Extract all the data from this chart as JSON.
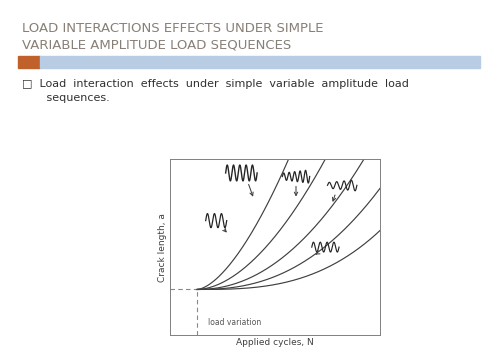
{
  "title_line1": "LOAD INTERACTIONS EFFECTS UNDER SIMPLE",
  "title_line2": "VARIABLE AMPLITUDE LOAD SEQUENCES",
  "title_color": "#888077",
  "title_fontsize": 9.5,
  "bar_orange": "#C0612B",
  "bar_blue": "#B8CCE4",
  "bullet_text_line1": "□  Load  interaction  effects  under  simple  variable  amplitude  load",
  "bullet_text_line2": "       sequences.",
  "bullet_fontsize": 8.0,
  "xlabel": "Applied cycles, N",
  "ylabel": "Crack length, a",
  "label_annotation": "load variation",
  "curve_color": "#404040",
  "dash_color": "#888888"
}
